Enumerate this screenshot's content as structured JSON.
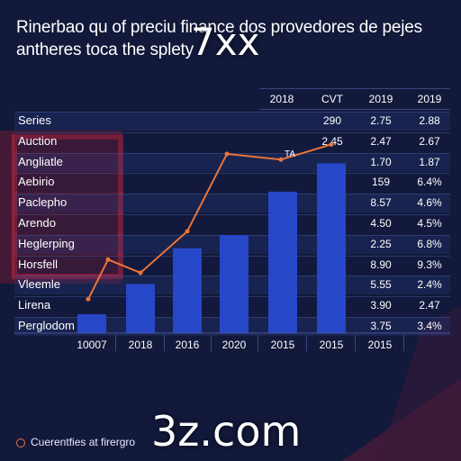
{
  "title": "Rinerbao qu of preciu finance dos provedores de pejes antheres toca the splety",
  "overlay_text": "7xx",
  "watermark": "3z.com",
  "legend_text": "Cuerentfies at firergro",
  "colors": {
    "background": "#12193a",
    "bar": "#2747c9",
    "line": "#e8743a",
    "accent_red": "#b3223a"
  },
  "chart_data": {
    "type": "bar",
    "title": "Rinerbao qu of preciu finance dos provedores de pejes antheres toca the splety",
    "x_ticks": [
      "10007",
      "2018",
      "2016",
      "2020",
      "2015",
      "2015",
      "2015"
    ],
    "bars": [
      {
        "x": "10007",
        "value": 1.0
      },
      {
        "x": "2018",
        "value": 2.6
      },
      {
        "x": "2016",
        "value": 4.5
      },
      {
        "x": "2020",
        "value": 5.2
      },
      {
        "x": "2015",
        "value": 7.5
      },
      {
        "x": "2015",
        "value": 9.0
      }
    ],
    "line": [
      1.8,
      3.9,
      3.2,
      5.4,
      9.5,
      9.2,
      10.0
    ],
    "line_label": "TA",
    "ylim": [
      0,
      10.5
    ],
    "table": {
      "headers": [
        "2018",
        "CVT",
        "2019",
        "2019"
      ],
      "rows": [
        {
          "label": "Series",
          "values": [
            "",
            "290",
            "2.75",
            "2.88"
          ]
        },
        {
          "label": "Auction",
          "values": [
            "",
            "2.45",
            "2.47",
            "2.67"
          ]
        },
        {
          "label": "Angliatle",
          "values": [
            "",
            "",
            "1.70",
            "1.87"
          ]
        },
        {
          "label": "Aebirio",
          "values": [
            "",
            "",
            "159",
            "6.4%"
          ]
        },
        {
          "label": "Paclepho",
          "values": [
            "",
            "",
            "8.57",
            "4.6%"
          ]
        },
        {
          "label": "Arendo",
          "values": [
            "",
            "",
            "4.50",
            "4.5%"
          ]
        },
        {
          "label": "Heglerping",
          "values": [
            "",
            "",
            "2.25",
            "6.8%"
          ]
        },
        {
          "label": "Horsfell",
          "values": [
            "",
            "",
            "8.90",
            "9.3%"
          ]
        },
        {
          "label": "Vleemle",
          "values": [
            "",
            "",
            "5.55",
            "2.4%"
          ]
        },
        {
          "label": "Lirena",
          "values": [
            "",
            "",
            "3.90",
            "2.47"
          ]
        },
        {
          "label": "Perglodom",
          "values": [
            "",
            "",
            "3.75",
            "3.4%"
          ]
        }
      ]
    }
  }
}
